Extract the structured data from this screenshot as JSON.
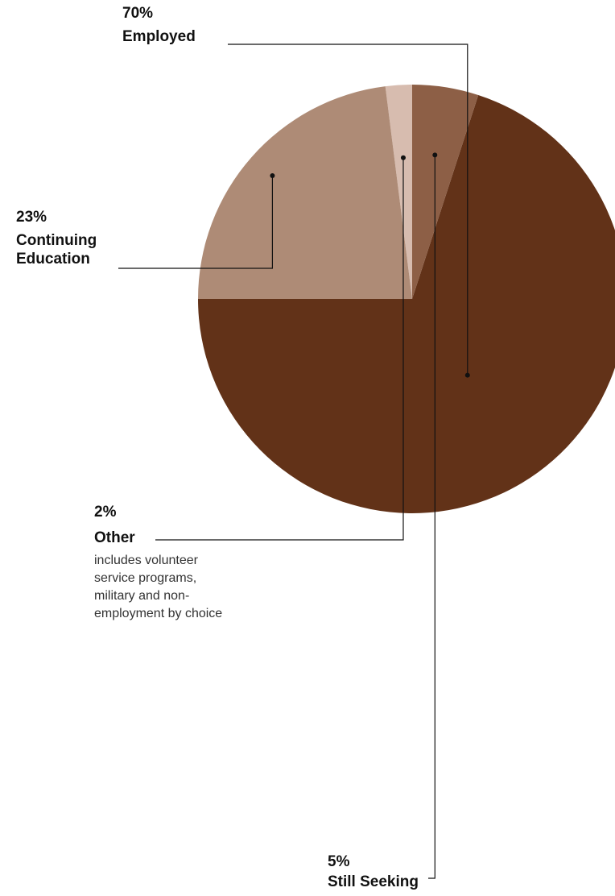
{
  "chart_data": {
    "type": "pie",
    "slices": [
      {
        "label": "Employed",
        "value": 70,
        "value_label": "70%",
        "color": "#623218"
      },
      {
        "label": "Still Seeking",
        "value": 5,
        "value_label": "5%",
        "color": "#8d5f46"
      },
      {
        "label": "Other",
        "value": 2,
        "value_label": "2%",
        "color": "#d7bcaf",
        "note": "includes volunteer service programs, military and non-employment by choice"
      },
      {
        "label": "Continuing Education",
        "value": 23,
        "value_label": "23%",
        "color": "#ae8b76"
      }
    ],
    "legend": "callout labels with leader lines"
  }
}
